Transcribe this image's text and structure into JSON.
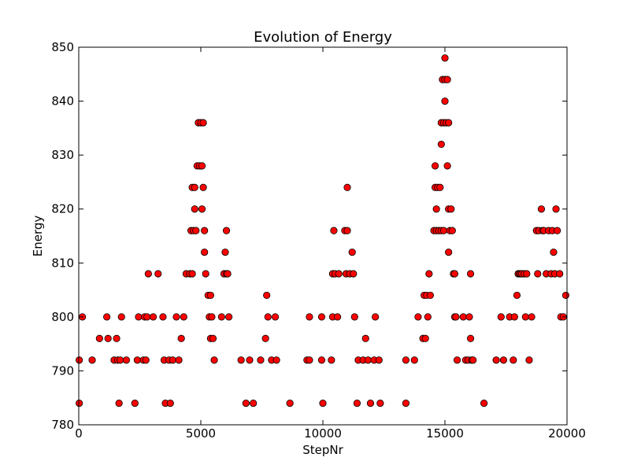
{
  "chart_data": {
    "type": "scatter",
    "title": "Evolution of Energy",
    "xlabel": "StepNr",
    "ylabel": "Energy",
    "xlim": [
      0,
      20000
    ],
    "ylim": [
      780,
      850
    ],
    "xticks": [
      0,
      5000,
      10000,
      15000,
      20000
    ],
    "yticks": [
      780,
      790,
      800,
      810,
      820,
      830,
      840,
      850
    ],
    "grid": false,
    "legend": "none",
    "marker_color": "#ff0000",
    "marker_edge_color": "#000000",
    "points": [
      [
        20,
        784
      ],
      [
        20,
        792
      ],
      [
        150,
        800
      ],
      [
        550,
        792
      ],
      [
        850,
        796
      ],
      [
        1150,
        800
      ],
      [
        1200,
        796
      ],
      [
        1450,
        792
      ],
      [
        1550,
        796
      ],
      [
        1600,
        792
      ],
      [
        1650,
        784
      ],
      [
        1700,
        792
      ],
      [
        1750,
        800
      ],
      [
        1950,
        792
      ],
      [
        2300,
        784
      ],
      [
        2400,
        792
      ],
      [
        2450,
        800
      ],
      [
        2650,
        792
      ],
      [
        2700,
        800
      ],
      [
        2750,
        792
      ],
      [
        2800,
        800
      ],
      [
        2850,
        808
      ],
      [
        3050,
        800
      ],
      [
        3250,
        808
      ],
      [
        3450,
        800
      ],
      [
        3500,
        792
      ],
      [
        3550,
        784
      ],
      [
        3700,
        792
      ],
      [
        3750,
        784
      ],
      [
        3850,
        792
      ],
      [
        4000,
        800
      ],
      [
        4100,
        792
      ],
      [
        4200,
        796
      ],
      [
        4300,
        800
      ],
      [
        4400,
        808
      ],
      [
        4550,
        808
      ],
      [
        4600,
        816
      ],
      [
        4650,
        808
      ],
      [
        4650,
        824
      ],
      [
        4700,
        816
      ],
      [
        4750,
        824
      ],
      [
        4750,
        820
      ],
      [
        4800,
        816
      ],
      [
        4850,
        828
      ],
      [
        4900,
        836
      ],
      [
        4950,
        828
      ],
      [
        5000,
        836
      ],
      [
        5050,
        828
      ],
      [
        5050,
        820
      ],
      [
        5100,
        836
      ],
      [
        5100,
        824
      ],
      [
        5150,
        816
      ],
      [
        5150,
        812
      ],
      [
        5200,
        808
      ],
      [
        5300,
        804
      ],
      [
        5350,
        800
      ],
      [
        5400,
        796
      ],
      [
        5400,
        804
      ],
      [
        5450,
        800
      ],
      [
        5500,
        796
      ],
      [
        5550,
        792
      ],
      [
        5850,
        800
      ],
      [
        5950,
        808
      ],
      [
        6000,
        812
      ],
      [
        6050,
        808
      ],
      [
        6050,
        816
      ],
      [
        6100,
        808
      ],
      [
        6150,
        800
      ],
      [
        6650,
        792
      ],
      [
        6850,
        784
      ],
      [
        7000,
        792
      ],
      [
        7150,
        784
      ],
      [
        7450,
        792
      ],
      [
        7650,
        796
      ],
      [
        7700,
        804
      ],
      [
        7750,
        800
      ],
      [
        7900,
        792
      ],
      [
        8050,
        800
      ],
      [
        8100,
        792
      ],
      [
        8650,
        784
      ],
      [
        9350,
        792
      ],
      [
        9450,
        800
      ],
      [
        9450,
        792
      ],
      [
        9950,
        800
      ],
      [
        9950,
        792
      ],
      [
        10000,
        784
      ],
      [
        10350,
        792
      ],
      [
        10400,
        808
      ],
      [
        10400,
        800
      ],
      [
        10450,
        816
      ],
      [
        10500,
        808
      ],
      [
        10600,
        800
      ],
      [
        10650,
        808
      ],
      [
        10900,
        816
      ],
      [
        10950,
        808
      ],
      [
        11000,
        824
      ],
      [
        11000,
        816
      ],
      [
        11100,
        808
      ],
      [
        11200,
        812
      ],
      [
        11250,
        808
      ],
      [
        11300,
        800
      ],
      [
        11400,
        784
      ],
      [
        11450,
        792
      ],
      [
        11650,
        792
      ],
      [
        11750,
        796
      ],
      [
        11850,
        792
      ],
      [
        11950,
        784
      ],
      [
        12100,
        792
      ],
      [
        12150,
        800
      ],
      [
        12300,
        792
      ],
      [
        12350,
        784
      ],
      [
        13400,
        784
      ],
      [
        13400,
        792
      ],
      [
        13750,
        792
      ],
      [
        13900,
        800
      ],
      [
        14100,
        796
      ],
      [
        14150,
        804
      ],
      [
        14200,
        796
      ],
      [
        14250,
        804
      ],
      [
        14300,
        800
      ],
      [
        14350,
        808
      ],
      [
        14400,
        804
      ],
      [
        14550,
        816
      ],
      [
        14600,
        828
      ],
      [
        14600,
        824
      ],
      [
        14650,
        820
      ],
      [
        14650,
        816
      ],
      [
        14700,
        824
      ],
      [
        14750,
        816
      ],
      [
        14800,
        824
      ],
      [
        14850,
        836
      ],
      [
        14850,
        832
      ],
      [
        14850,
        816
      ],
      [
        14900,
        844
      ],
      [
        14950,
        836
      ],
      [
        14950,
        816
      ],
      [
        15000,
        848
      ],
      [
        15000,
        840
      ],
      [
        15000,
        844
      ],
      [
        15050,
        836
      ],
      [
        15100,
        828
      ],
      [
        15100,
        844
      ],
      [
        15150,
        836
      ],
      [
        15150,
        820
      ],
      [
        15150,
        812
      ],
      [
        15200,
        816
      ],
      [
        15250,
        820
      ],
      [
        15300,
        816
      ],
      [
        15350,
        808
      ],
      [
        15400,
        800
      ],
      [
        15400,
        808
      ],
      [
        15450,
        800
      ],
      [
        15500,
        792
      ],
      [
        15750,
        800
      ],
      [
        15850,
        792
      ],
      [
        15950,
        792
      ],
      [
        16000,
        800
      ],
      [
        16050,
        808
      ],
      [
        16050,
        796
      ],
      [
        16100,
        792
      ],
      [
        16150,
        792
      ],
      [
        16600,
        784
      ],
      [
        17100,
        792
      ],
      [
        17300,
        800
      ],
      [
        17400,
        792
      ],
      [
        17650,
        800
      ],
      [
        17800,
        792
      ],
      [
        17850,
        800
      ],
      [
        17950,
        804
      ],
      [
        18000,
        808
      ],
      [
        18050,
        808
      ],
      [
        18100,
        808
      ],
      [
        18150,
        808
      ],
      [
        18250,
        808
      ],
      [
        18300,
        800
      ],
      [
        18350,
        808
      ],
      [
        18450,
        792
      ],
      [
        18550,
        800
      ],
      [
        18750,
        816
      ],
      [
        18800,
        808
      ],
      [
        18850,
        816
      ],
      [
        18950,
        820
      ],
      [
        19000,
        816
      ],
      [
        19050,
        816
      ],
      [
        19150,
        808
      ],
      [
        19250,
        816
      ],
      [
        19350,
        808
      ],
      [
        19400,
        816
      ],
      [
        19450,
        812
      ],
      [
        19500,
        808
      ],
      [
        19550,
        820
      ],
      [
        19600,
        816
      ],
      [
        19700,
        808
      ],
      [
        19750,
        800
      ],
      [
        19850,
        800
      ],
      [
        19950,
        804
      ]
    ]
  }
}
